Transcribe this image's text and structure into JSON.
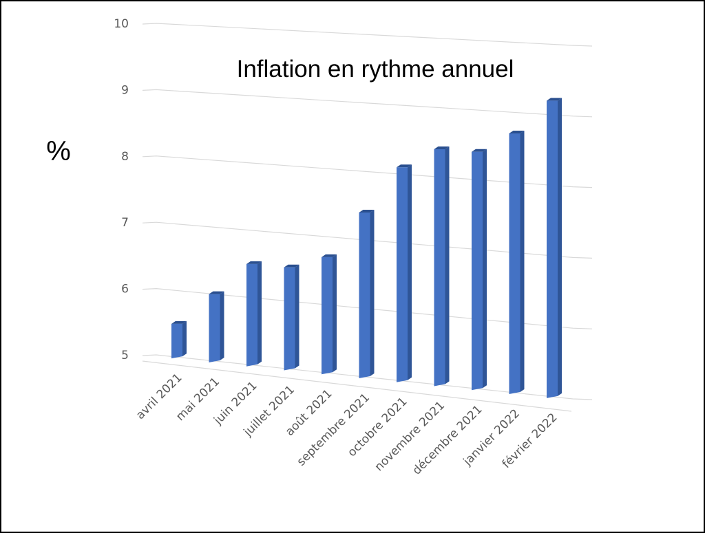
{
  "chart_data": {
    "type": "bar",
    "title": "Inflation en rythme annuel",
    "ylabel": "%",
    "xlabel": "",
    "categories": [
      "avril 2021",
      "mai 2021",
      "juin 2021",
      "juillet 2021",
      "août 2021",
      "septembre 2021",
      "octobre 2021",
      "novembre 2021",
      "décembre 2021",
      "janvier 2022",
      "février 2022"
    ],
    "values": [
      5.5,
      6.0,
      6.5,
      6.5,
      6.7,
      7.4,
      8.1,
      8.4,
      8.4,
      8.7,
      9.2
    ],
    "ylim": [
      5,
      10
    ],
    "yticks": [
      "5",
      "6",
      "7",
      "8",
      "9",
      "10"
    ],
    "grid": true,
    "legend": "none",
    "style": "3d-column",
    "colors": {
      "bar_front": "#4472c4",
      "bar_side": "#2f5597",
      "bar_top": "#2a4f8f",
      "grid": "#d9d9d9"
    }
  }
}
